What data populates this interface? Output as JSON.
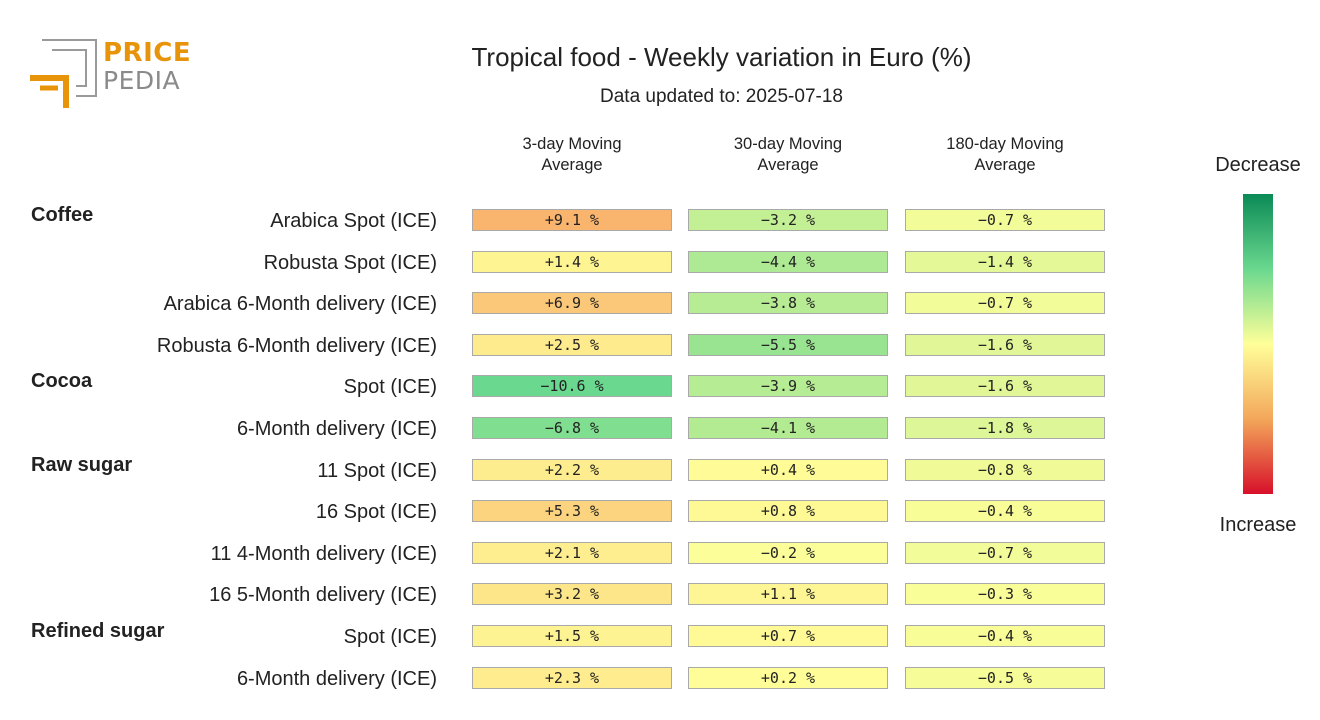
{
  "header": {
    "title": "Tropical food - Weekly variation in Euro (%)",
    "subtitle": "Data updated to: 2025-07-18"
  },
  "logo": {
    "line1": "PRICE",
    "line2": "PEDIA"
  },
  "legend": {
    "top_label": "Decrease",
    "bottom_label": "Increase"
  },
  "colors": {
    "decrease_strong": "#0b8a56",
    "neutral": "#ffff99",
    "increase_strong": "#d7102a",
    "logo_orange": "#e8940a",
    "logo_gray": "#8a8a8a"
  },
  "chart_data": {
    "type": "heatmap",
    "title": "Tropical food - Weekly variation in Euro (%)",
    "subtitle": "Data updated to: 2025-07-18",
    "columns": [
      "3-day Moving Average",
      "30-day Moving Average",
      "180-day Moving Average"
    ],
    "column_lines": [
      [
        "3-day Moving",
        "Average"
      ],
      [
        "30-day Moving",
        "Average"
      ],
      [
        "180-day Moving",
        "Average"
      ]
    ],
    "groups": [
      {
        "name": "Coffee",
        "rows": [
          {
            "label": "Arabica Spot (ICE)",
            "values": [
              9.1,
              -3.2,
              -0.7
            ]
          },
          {
            "label": "Robusta Spot (ICE)",
            "values": [
              1.4,
              -4.4,
              -1.4
            ]
          },
          {
            "label": "Arabica 6-Month delivery (ICE)",
            "values": [
              6.9,
              -3.8,
              -0.7
            ]
          },
          {
            "label": "Robusta 6-Month delivery (ICE)",
            "values": [
              2.5,
              -5.5,
              -1.6
            ]
          }
        ]
      },
      {
        "name": "Cocoa",
        "rows": [
          {
            "label": "Spot (ICE)",
            "values": [
              -10.6,
              -3.9,
              -1.6
            ]
          },
          {
            "label": "6-Month delivery (ICE)",
            "values": [
              -6.8,
              -4.1,
              -1.8
            ]
          }
        ]
      },
      {
        "name": "Raw sugar",
        "rows": [
          {
            "label": "11 Spot (ICE)",
            "values": [
              2.2,
              0.4,
              -0.8
            ]
          },
          {
            "label": "16 Spot (ICE)",
            "values": [
              5.3,
              0.8,
              -0.4
            ]
          },
          {
            "label": "11 4-Month delivery (ICE)",
            "values": [
              2.1,
              -0.2,
              -0.7
            ]
          },
          {
            "label": "16 5-Month delivery (ICE)",
            "values": [
              3.2,
              1.1,
              -0.3
            ]
          }
        ]
      },
      {
        "name": "Refined sugar",
        "rows": [
          {
            "label": "Spot (ICE)",
            "values": [
              1.5,
              0.7,
              -0.4
            ]
          },
          {
            "label": "6-Month delivery (ICE)",
            "values": [
              2.3,
              0.2,
              -0.5
            ]
          }
        ]
      }
    ]
  }
}
